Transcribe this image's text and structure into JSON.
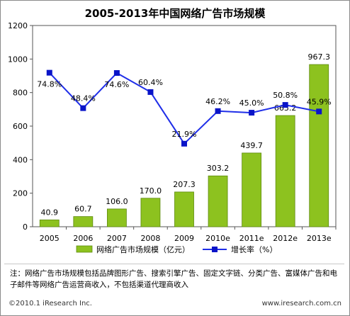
{
  "title": "2005-2013年中国网络广告市场规模",
  "chart_data": {
    "type": "bar",
    "categories": [
      "2005",
      "2006",
      "2007",
      "2008",
      "2009",
      "2010e",
      "2011e",
      "2012e",
      "2013e"
    ],
    "series": [
      {
        "name": "网络广告市场规模（亿元）",
        "type": "bar",
        "axis": "left",
        "values": [
          40.9,
          60.7,
          106.0,
          170.0,
          207.3,
          303.2,
          439.7,
          663.2,
          967.3
        ],
        "labels": [
          "40.9",
          "60.7",
          "106.0",
          "170.0",
          "207.3",
          "303.2",
          "439.7",
          "663.2",
          "967.3"
        ],
        "color": "#8dc21f"
      },
      {
        "name": "增长率（%）",
        "type": "line",
        "axis": "right",
        "values": [
          74.8,
          48.4,
          74.6,
          60.4,
          21.9,
          46.2,
          45.0,
          50.8,
          45.9
        ],
        "labels": [
          "74.8%",
          "48.4%",
          "74.6%",
          "60.4%",
          "21.9%",
          "46.2%",
          "45.0%",
          "50.8%",
          "45.9%"
        ],
        "color": "#1f2ee8"
      }
    ],
    "ylim": [
      0,
      1200
    ],
    "yticks": [
      "0",
      "200",
      "400",
      "600",
      "800",
      "1000",
      "1200"
    ],
    "grid": false,
    "legend": "bottom"
  },
  "footnote": "注：网络广告市场规模包括品牌图形广告、搜索引擎广告、固定文字链、分类广告、富媒体广告和电子邮件等网络广告运营商收入，不包括渠道代理商收入",
  "copyright": "©2010.1 iResearch Inc.",
  "site": "www.iresearch.com.cn"
}
